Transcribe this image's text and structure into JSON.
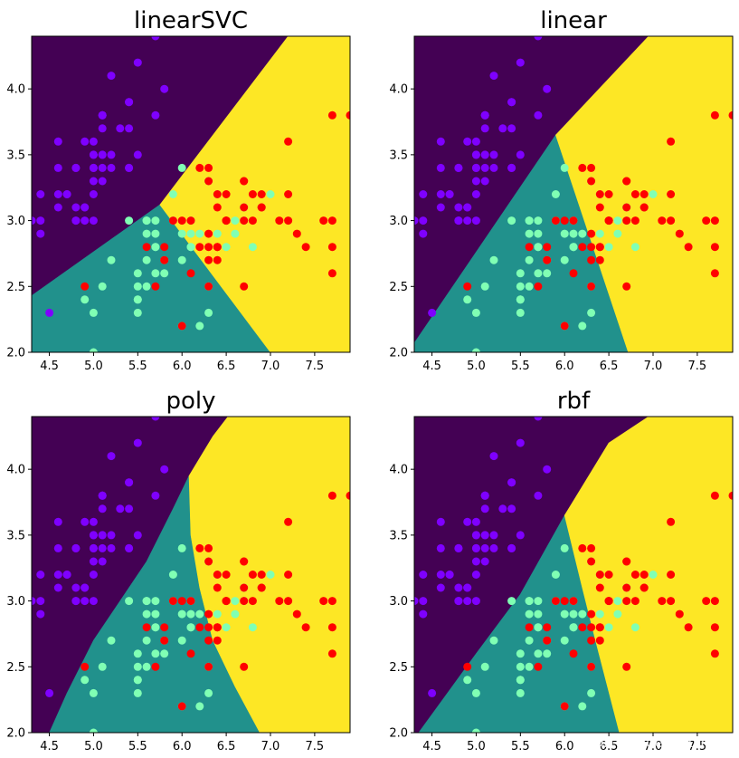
{
  "chart_data": [
    {
      "type": "scatter",
      "title": "linearSVC",
      "xlim": [
        4.3,
        7.9
      ],
      "ylim": [
        2.0,
        4.4
      ],
      "xticks": [
        "4.5",
        "5.0",
        "5.5",
        "6.0",
        "6.5",
        "7.0",
        "7.5"
      ],
      "yticks": [
        "2.0",
        "2.5",
        "3.0",
        "3.5",
        "4.0"
      ],
      "regions": [
        {
          "class": "purple",
          "polygon": [
            [
              4.3,
              2.43
            ],
            [
              5.75,
              3.12
            ],
            [
              7.2,
              4.4
            ],
            [
              4.3,
              4.4
            ]
          ]
        },
        {
          "class": "teal",
          "polygon": [
            [
              4.3,
              2.0
            ],
            [
              7.0,
              2.0
            ],
            [
              5.75,
              3.12
            ],
            [
              4.3,
              2.43
            ]
          ]
        },
        {
          "class": "yellow",
          "polygon": [
            [
              7.0,
              2.0
            ],
            [
              7.9,
              2.0
            ],
            [
              7.9,
              4.4
            ],
            [
              7.2,
              4.4
            ],
            [
              5.75,
              3.12
            ]
          ]
        }
      ]
    },
    {
      "type": "scatter",
      "title": "linear",
      "xlim": [
        4.3,
        7.9
      ],
      "ylim": [
        2.0,
        4.4
      ],
      "xticks": [
        "4.5",
        "5.0",
        "5.5",
        "6.0",
        "6.5",
        "7.0",
        "7.5"
      ],
      "yticks": [
        "2.0",
        "2.5",
        "3.0",
        "3.5",
        "4.0"
      ],
      "regions": [
        {
          "class": "purple",
          "polygon": [
            [
              4.3,
              2.07
            ],
            [
              5.9,
              3.65
            ],
            [
              6.95,
              4.4
            ],
            [
              4.3,
              4.4
            ]
          ]
        },
        {
          "class": "teal",
          "polygon": [
            [
              4.3,
              2.0
            ],
            [
              6.72,
              2.0
            ],
            [
              5.9,
              3.65
            ],
            [
              4.3,
              2.07
            ]
          ]
        },
        {
          "class": "yellow",
          "polygon": [
            [
              6.72,
              2.0
            ],
            [
              7.9,
              2.0
            ],
            [
              7.9,
              4.4
            ],
            [
              6.95,
              4.4
            ],
            [
              5.9,
              3.65
            ]
          ]
        }
      ]
    },
    {
      "type": "scatter",
      "title": "poly",
      "xlim": [
        4.3,
        7.9
      ],
      "ylim": [
        2.0,
        4.4
      ],
      "xticks": [
        "4.5",
        "5.0",
        "5.5",
        "6.0",
        "6.5",
        "7.0",
        "7.5"
      ],
      "yticks": [
        "2.0",
        "2.5",
        "3.0",
        "3.5",
        "4.0"
      ],
      "regions": [
        {
          "class": "purple",
          "polygon": [
            [
              4.5,
              2.0
            ],
            [
              4.7,
              2.3
            ],
            [
              5.0,
              2.7
            ],
            [
              5.3,
              3.0
            ],
            [
              5.6,
              3.3
            ],
            [
              5.9,
              3.7
            ],
            [
              6.08,
              3.95
            ],
            [
              6.35,
              4.25
            ],
            [
              6.52,
              4.4
            ],
            [
              4.3,
              4.4
            ],
            [
              4.3,
              2.0
            ]
          ]
        },
        {
          "class": "teal",
          "polygon": [
            [
              4.5,
              2.0
            ],
            [
              6.88,
              2.0
            ],
            [
              6.6,
              2.35
            ],
            [
              6.35,
              2.7
            ],
            [
              6.2,
              3.1
            ],
            [
              6.1,
              3.5
            ],
            [
              6.08,
              3.95
            ],
            [
              5.9,
              3.7
            ],
            [
              5.6,
              3.3
            ],
            [
              5.3,
              3.0
            ],
            [
              5.0,
              2.7
            ],
            [
              4.7,
              2.3
            ]
          ]
        },
        {
          "class": "yellow",
          "polygon": [
            [
              6.88,
              2.0
            ],
            [
              7.9,
              2.0
            ],
            [
              7.9,
              4.4
            ],
            [
              6.52,
              4.4
            ],
            [
              6.35,
              4.25
            ],
            [
              6.08,
              3.95
            ],
            [
              6.1,
              3.5
            ],
            [
              6.2,
              3.1
            ],
            [
              6.35,
              2.7
            ],
            [
              6.6,
              2.35
            ]
          ]
        }
      ]
    },
    {
      "type": "scatter",
      "title": "rbf",
      "xlim": [
        4.3,
        7.9
      ],
      "ylim": [
        2.0,
        4.4
      ],
      "xticks": [
        "4.5",
        "5.0",
        "5.5",
        "6.0",
        "6.5",
        "7.0",
        "7.5"
      ],
      "yticks": [
        "2.0",
        "2.5",
        "3.0",
        "3.5",
        "4.0"
      ],
      "regions": [
        {
          "class": "purple",
          "polygon": [
            [
              4.35,
              2.0
            ],
            [
              5.0,
              2.6
            ],
            [
              5.5,
              3.05
            ],
            [
              6.0,
              3.65
            ],
            [
              6.5,
              4.2
            ],
            [
              6.95,
              4.4
            ],
            [
              4.3,
              4.4
            ],
            [
              4.3,
              2.0
            ]
          ]
        },
        {
          "class": "teal",
          "polygon": [
            [
              4.35,
              2.0
            ],
            [
              6.62,
              2.0
            ],
            [
              6.35,
              2.7
            ],
            [
              6.2,
              3.1
            ],
            [
              6.0,
              3.65
            ],
            [
              5.5,
              3.05
            ],
            [
              5.0,
              2.6
            ]
          ]
        },
        {
          "class": "yellow",
          "polygon": [
            [
              6.62,
              2.0
            ],
            [
              7.9,
              2.0
            ],
            [
              7.9,
              4.4
            ],
            [
              6.95,
              4.4
            ],
            [
              6.5,
              4.2
            ],
            [
              6.0,
              3.65
            ],
            [
              6.2,
              3.1
            ],
            [
              6.35,
              2.7
            ]
          ]
        }
      ]
    }
  ],
  "points": {
    "setosa": [
      [
        5.1,
        3.5
      ],
      [
        4.9,
        3.0
      ],
      [
        4.7,
        3.2
      ],
      [
        4.6,
        3.1
      ],
      [
        5.0,
        3.6
      ],
      [
        5.4,
        3.9
      ],
      [
        4.6,
        3.4
      ],
      [
        5.0,
        3.4
      ],
      [
        4.4,
        2.9
      ],
      [
        4.9,
        3.1
      ],
      [
        5.4,
        3.7
      ],
      [
        4.8,
        3.4
      ],
      [
        4.8,
        3.0
      ],
      [
        4.3,
        3.0
      ],
      [
        5.8,
        4.0
      ],
      [
        5.7,
        4.4
      ],
      [
        5.4,
        3.9
      ],
      [
        5.1,
        3.5
      ],
      [
        5.7,
        3.8
      ],
      [
        5.1,
        3.8
      ],
      [
        5.4,
        3.4
      ],
      [
        5.1,
        3.7
      ],
      [
        4.6,
        3.6
      ],
      [
        5.1,
        3.3
      ],
      [
        4.8,
        3.4
      ],
      [
        5.0,
        3.0
      ],
      [
        5.0,
        3.4
      ],
      [
        5.2,
        3.5
      ],
      [
        5.2,
        3.4
      ],
      [
        4.7,
        3.2
      ],
      [
        4.8,
        3.1
      ],
      [
        5.4,
        3.4
      ],
      [
        5.2,
        4.1
      ],
      [
        5.5,
        4.2
      ],
      [
        4.9,
        3.1
      ],
      [
        5.0,
        3.2
      ],
      [
        5.5,
        3.5
      ],
      [
        4.9,
        3.6
      ],
      [
        4.4,
        3.0
      ],
      [
        5.1,
        3.4
      ],
      [
        5.0,
        3.5
      ],
      [
        4.5,
        2.3
      ],
      [
        4.4,
        3.2
      ],
      [
        5.0,
        3.5
      ],
      [
        5.1,
        3.8
      ],
      [
        4.8,
        3.0
      ],
      [
        5.1,
        3.8
      ],
      [
        4.6,
        3.2
      ],
      [
        5.3,
        3.7
      ],
      [
        5.0,
        3.3
      ]
    ],
    "versicolor": [
      [
        7.0,
        3.2
      ],
      [
        6.4,
        3.2
      ],
      [
        6.9,
        3.1
      ],
      [
        5.5,
        2.3
      ],
      [
        6.5,
        2.8
      ],
      [
        5.7,
        2.8
      ],
      [
        6.3,
        3.3
      ],
      [
        4.9,
        2.4
      ],
      [
        6.6,
        2.9
      ],
      [
        5.2,
        2.7
      ],
      [
        5.0,
        2.0
      ],
      [
        5.9,
        3.0
      ],
      [
        6.0,
        2.2
      ],
      [
        6.1,
        2.9
      ],
      [
        5.6,
        2.9
      ],
      [
        6.7,
        3.1
      ],
      [
        5.6,
        3.0
      ],
      [
        5.8,
        2.7
      ],
      [
        6.2,
        2.2
      ],
      [
        5.6,
        2.5
      ],
      [
        5.9,
        3.2
      ],
      [
        6.1,
        2.8
      ],
      [
        6.3,
        2.5
      ],
      [
        6.1,
        2.8
      ],
      [
        6.4,
        2.9
      ],
      [
        6.6,
        3.0
      ],
      [
        6.8,
        2.8
      ],
      [
        6.7,
        3.0
      ],
      [
        6.0,
        2.9
      ],
      [
        5.7,
        2.6
      ],
      [
        5.5,
        2.4
      ],
      [
        5.5,
        2.4
      ],
      [
        5.8,
        2.7
      ],
      [
        6.0,
        2.7
      ],
      [
        5.4,
        3.0
      ],
      [
        6.0,
        3.4
      ],
      [
        6.7,
        3.1
      ],
      [
        6.3,
        2.3
      ],
      [
        5.6,
        3.0
      ],
      [
        5.5,
        2.5
      ],
      [
        5.5,
        2.6
      ],
      [
        6.1,
        3.0
      ],
      [
        5.8,
        2.6
      ],
      [
        5.0,
        2.3
      ],
      [
        5.6,
        2.7
      ],
      [
        5.7,
        3.0
      ],
      [
        5.7,
        2.9
      ],
      [
        6.2,
        2.9
      ],
      [
        5.1,
        2.5
      ],
      [
        5.7,
        2.8
      ]
    ],
    "virginica": [
      [
        6.3,
        3.3
      ],
      [
        5.8,
        2.7
      ],
      [
        7.1,
        3.0
      ],
      [
        6.3,
        2.9
      ],
      [
        6.5,
        3.0
      ],
      [
        7.6,
        3.0
      ],
      [
        4.9,
        2.5
      ],
      [
        7.3,
        2.9
      ],
      [
        6.7,
        2.5
      ],
      [
        7.2,
        3.6
      ],
      [
        6.5,
        3.2
      ],
      [
        6.4,
        2.7
      ],
      [
        6.8,
        3.0
      ],
      [
        5.7,
        2.5
      ],
      [
        5.8,
        2.8
      ],
      [
        6.4,
        3.2
      ],
      [
        6.5,
        3.0
      ],
      [
        7.7,
        3.8
      ],
      [
        7.7,
        2.6
      ],
      [
        6.0,
        2.2
      ],
      [
        6.9,
        3.2
      ],
      [
        5.6,
        2.8
      ],
      [
        7.7,
        2.8
      ],
      [
        6.3,
        2.7
      ],
      [
        6.7,
        3.3
      ],
      [
        7.2,
        3.2
      ],
      [
        6.2,
        2.8
      ],
      [
        6.1,
        3.0
      ],
      [
        6.4,
        2.8
      ],
      [
        7.2,
        3.0
      ],
      [
        7.4,
        2.8
      ],
      [
        7.9,
        3.8
      ],
      [
        6.4,
        2.8
      ],
      [
        6.3,
        2.8
      ],
      [
        6.1,
        2.6
      ],
      [
        7.7,
        3.0
      ],
      [
        6.3,
        3.4
      ],
      [
        6.4,
        3.1
      ],
      [
        6.0,
        3.0
      ],
      [
        6.9,
        3.1
      ],
      [
        6.7,
        3.1
      ],
      [
        6.9,
        3.1
      ],
      [
        5.8,
        2.7
      ],
      [
        6.8,
        3.2
      ],
      [
        6.7,
        3.3
      ],
      [
        6.7,
        3.0
      ],
      [
        6.3,
        2.5
      ],
      [
        6.5,
        3.0
      ],
      [
        6.2,
        3.4
      ],
      [
        5.9,
        3.0
      ]
    ]
  },
  "colors": {
    "purple": "#440154",
    "teal": "#21918c",
    "yellow": "#fde725",
    "setosa": "#7f00ff",
    "versicolor": "#80ffb4",
    "virginica": "#ff0000",
    "axis": "#000000"
  },
  "watermark": "CSDN @GluePudding6"
}
